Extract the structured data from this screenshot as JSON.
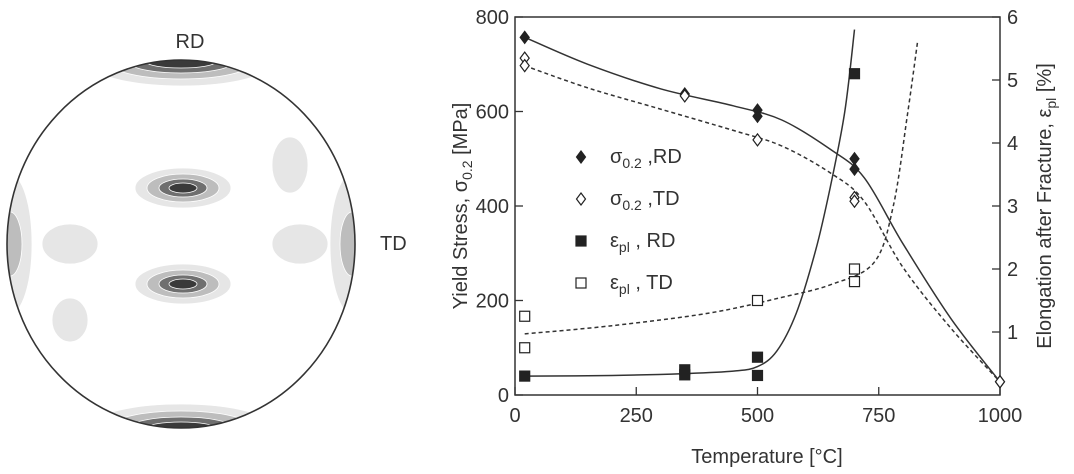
{
  "pole_figure": {
    "label_top": "RD",
    "label_right": "TD",
    "colors": {
      "outline": "#333333",
      "light": "#e6e6e6",
      "mid": "#bdbdbd",
      "dark": "#6f6f6f",
      "darkest": "#3a3a3a"
    }
  },
  "chart_data": {
    "type": "scatter",
    "xlabel": "Temperature [°C]",
    "ylabel_left": "Yield Stress, σ_0.2 [MPa]",
    "ylabel_right": "Elongation after Fracture, ε_pl [%]",
    "xlim": [
      0,
      1000
    ],
    "ylim_left": [
      0,
      800
    ],
    "ylim_right": [
      0,
      6
    ],
    "xticks": [
      "0",
      "250",
      "500",
      "750",
      "1000"
    ],
    "yticks_left": [
      "0",
      "200",
      "400",
      "600",
      "800"
    ],
    "yticks_right": [
      "1",
      "2",
      "3",
      "4",
      "5",
      "6"
    ],
    "grid": false,
    "legend_position": "middle-left",
    "series": [
      {
        "name": "σ_0.2 ,RD",
        "axis": "left",
        "marker": "filled-diamond",
        "line": "solid",
        "points": [
          [
            20,
            757
          ],
          [
            350,
            637
          ],
          [
            500,
            603
          ],
          [
            500,
            590
          ],
          [
            700,
            500
          ],
          [
            700,
            478
          ],
          [
            1000,
            28
          ]
        ],
        "fit": [
          [
            20,
            757
          ],
          [
            150,
            700
          ],
          [
            300,
            648
          ],
          [
            450,
            612
          ],
          [
            550,
            582
          ],
          [
            650,
            520
          ],
          [
            720,
            460
          ],
          [
            800,
            320
          ],
          [
            900,
            160
          ],
          [
            1000,
            28
          ]
        ]
      },
      {
        "name": "σ_0.2 ,TD",
        "axis": "left",
        "marker": "open-diamond",
        "line": "dashed",
        "points": [
          [
            20,
            713
          ],
          [
            20,
            697
          ],
          [
            350,
            633
          ],
          [
            500,
            540
          ],
          [
            700,
            418
          ],
          [
            700,
            410
          ],
          [
            1000,
            28
          ]
        ],
        "fit": [
          [
            20,
            697
          ],
          [
            150,
            650
          ],
          [
            300,
            605
          ],
          [
            450,
            560
          ],
          [
            550,
            527
          ],
          [
            650,
            470
          ],
          [
            720,
            410
          ],
          [
            800,
            270
          ],
          [
            900,
            140
          ],
          [
            1000,
            28
          ]
        ]
      },
      {
        "name": "ε_pl , RD",
        "axis": "right",
        "marker": "filled-square",
        "line": "solid",
        "points": [
          [
            20,
            0.3
          ],
          [
            350,
            0.4
          ],
          [
            350,
            0.32
          ],
          [
            500,
            0.6
          ],
          [
            500,
            0.31
          ],
          [
            700,
            5.1
          ]
        ],
        "fit": [
          [
            20,
            0.3
          ],
          [
            200,
            0.31
          ],
          [
            350,
            0.34
          ],
          [
            450,
            0.38
          ],
          [
            500,
            0.45
          ],
          [
            540,
            0.7
          ],
          [
            580,
            1.3
          ],
          [
            620,
            2.3
          ],
          [
            650,
            3.3
          ],
          [
            680,
            4.5
          ],
          [
            700,
            5.8
          ]
        ]
      },
      {
        "name": "ε_pl , TD",
        "axis": "right",
        "marker": "open-square",
        "line": "dashed",
        "points": [
          [
            20,
            1.25
          ],
          [
            20,
            0.75
          ],
          [
            500,
            1.5
          ],
          [
            700,
            2.0
          ],
          [
            700,
            1.8
          ]
        ],
        "fit": [
          [
            20,
            0.97
          ],
          [
            200,
            1.1
          ],
          [
            400,
            1.3
          ],
          [
            550,
            1.55
          ],
          [
            650,
            1.75
          ],
          [
            740,
            2.1
          ],
          [
            780,
            3.0
          ],
          [
            810,
            4.5
          ],
          [
            830,
            5.6
          ]
        ]
      }
    ]
  }
}
